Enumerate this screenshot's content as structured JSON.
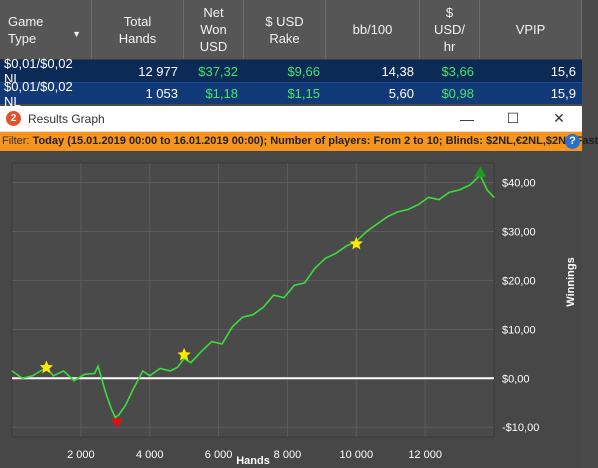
{
  "table": {
    "headers": [
      {
        "label": "Game\nType",
        "has_dropdown": true
      },
      {
        "label": "Total\nHands"
      },
      {
        "label": "Net\nWon\nUSD"
      },
      {
        "label": "$ USD\nRake"
      },
      {
        "label": "bb/100"
      },
      {
        "label": "$\nUSD/\nhr"
      },
      {
        "label": "VPIP"
      }
    ],
    "rows": [
      [
        "$0,01/$0,02 NL",
        "12 977",
        "$37,32",
        "$9,66",
        "14,38",
        "$3,66",
        "15,6"
      ],
      [
        "$0,01/$0,02 NL",
        "1 053",
        "$1,18",
        "$1,15",
        "5,60",
        "$0,98",
        "15,9"
      ]
    ]
  },
  "window": {
    "title": "Results Graph",
    "app_icon": "2",
    "controls": {
      "minimize": "—",
      "maximize": "☐",
      "close": "✕"
    }
  },
  "filter": {
    "label": "Filter:",
    "value": "Today (15.01.2019 00:00 to 16.01.2019 00:00); Number of players: From 2 to 10; Blinds: $2NL,€2NL,$2NL Fast",
    "help_icon": "?"
  },
  "chart_data": {
    "type": "line",
    "xlabel": "Hands",
    "ylabel": "Winnings",
    "x_ticks": [
      2000,
      4000,
      6000,
      8000,
      10000,
      12000
    ],
    "x_tick_labels": [
      "2 000",
      "4 000",
      "6 000",
      "8 000",
      "10 000",
      "12 000"
    ],
    "y_ticks": [
      -10,
      0,
      10,
      20,
      30,
      40
    ],
    "y_tick_labels": [
      "-$10,00",
      "$0,00",
      "$10,00",
      "$20,00",
      "$30,00",
      "$40,00"
    ],
    "xlim": [
      0,
      14000
    ],
    "ylim": [
      -12,
      44
    ],
    "grid": true,
    "series": [
      {
        "color": "#3ddc3d",
        "x": [
          0,
          300,
          600,
          900,
          1000,
          1200,
          1500,
          1800,
          2100,
          2400,
          2500,
          2700,
          2900,
          3000,
          3100,
          3300,
          3500,
          3800,
          4000,
          4300,
          4600,
          4800,
          5000,
          5200,
          5500,
          5800,
          6100,
          6400,
          6700,
          7000,
          7300,
          7600,
          7900,
          8200,
          8500,
          8800,
          9100,
          9400,
          9700,
          10000,
          10300,
          10600,
          10900,
          11200,
          11500,
          11800,
          12100,
          12400,
          12700,
          13000,
          13300,
          13600,
          13800,
          14000
        ],
        "y": [
          1.5,
          0,
          0.5,
          1.8,
          2.2,
          0.5,
          1.5,
          -0.5,
          0.8,
          1.0,
          2.5,
          -2.5,
          -6.5,
          -8.0,
          -7.5,
          -5.5,
          -2.5,
          1.5,
          0.5,
          2.0,
          1.5,
          2.2,
          4.0,
          3.2,
          5.5,
          7.5,
          7.0,
          10.5,
          12.5,
          13.0,
          14.5,
          17.0,
          16.5,
          19.0,
          19.5,
          22.5,
          24.5,
          25.5,
          27.0,
          28.0,
          30.0,
          31.5,
          33.0,
          34.0,
          34.5,
          35.5,
          37.0,
          36.5,
          38.0,
          38.5,
          39.5,
          41.5,
          38.5,
          37.0
        ]
      }
    ],
    "markers": [
      {
        "type": "star",
        "color": "#ffeb00",
        "x": 1000,
        "y": 2.2
      },
      {
        "type": "star",
        "color": "#ffeb00",
        "x": 5000,
        "y": 4.8
      },
      {
        "type": "star",
        "color": "#ffeb00",
        "x": 10000,
        "y": 27.5
      },
      {
        "type": "triangle-down",
        "color": "#e01010",
        "x": 3050,
        "y": -9.2
      },
      {
        "type": "triangle-up",
        "color": "#1ca01c",
        "x": 13600,
        "y": 42.2
      }
    ],
    "zero_line_color": "#ffffff"
  }
}
